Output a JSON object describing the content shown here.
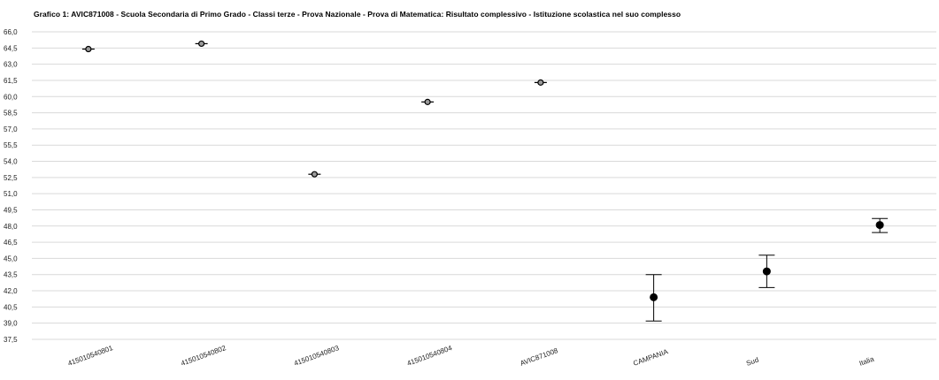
{
  "title": "Grafico 1: AVIC871008 - Scuola Secondaria di Primo Grado - Classi terze - Prova Nazionale - Prova di Matematica: Risultato complessivo - Istituzione scolastica nel suo complesso",
  "chart_data": {
    "type": "scatter",
    "title": "Grafico 1: AVIC871008 - Scuola Secondaria di Primo Grado - Classi terze - Prova Nazionale - Prova di Matematica: Risultato complessivo - Istituzione scolastica nel suo complesso",
    "xlabel": "",
    "ylabel": "",
    "ylim": [
      37.5,
      66.0
    ],
    "yticks": [
      "66,0",
      "64,5",
      "63,0",
      "61,5",
      "60,0",
      "58,5",
      "57,0",
      "55,5",
      "54,0",
      "52,5",
      "51,0",
      "49,5",
      "48,0",
      "46,5",
      "45,0",
      "43,5",
      "42,0",
      "40,5",
      "39,0",
      "37,5"
    ],
    "grid": true,
    "legend": "none",
    "categories": [
      "415010540801",
      "415010540802",
      "415010540803",
      "415010540804",
      "AVIC871008",
      "CAMPANIA",
      "Sud",
      "Italia"
    ],
    "points": [
      {
        "category": "415010540801",
        "value": 64.4,
        "lower": 64.4,
        "upper": 64.4,
        "marker": "open"
      },
      {
        "category": "415010540802",
        "value": 64.9,
        "lower": 64.9,
        "upper": 64.9,
        "marker": "open"
      },
      {
        "category": "415010540803",
        "value": 52.8,
        "lower": 52.8,
        "upper": 52.8,
        "marker": "open"
      },
      {
        "category": "415010540804",
        "value": 59.5,
        "lower": 59.5,
        "upper": 59.5,
        "marker": "open"
      },
      {
        "category": "AVIC871008",
        "value": 61.3,
        "lower": 61.3,
        "upper": 61.3,
        "marker": "open"
      },
      {
        "category": "CAMPANIA",
        "value": 41.4,
        "lower": 39.2,
        "upper": 43.5,
        "marker": "filled"
      },
      {
        "category": "Sud",
        "value": 43.8,
        "lower": 42.3,
        "upper": 45.3,
        "marker": "filled"
      },
      {
        "category": "Italia",
        "value": 48.1,
        "lower": 47.4,
        "upper": 48.7,
        "marker": "filled"
      }
    ],
    "colors": {
      "grid": "#d9d9d9",
      "marker": "#000000",
      "open_marker_fill": "#9a9a9a",
      "errorbar": "#000000"
    }
  }
}
